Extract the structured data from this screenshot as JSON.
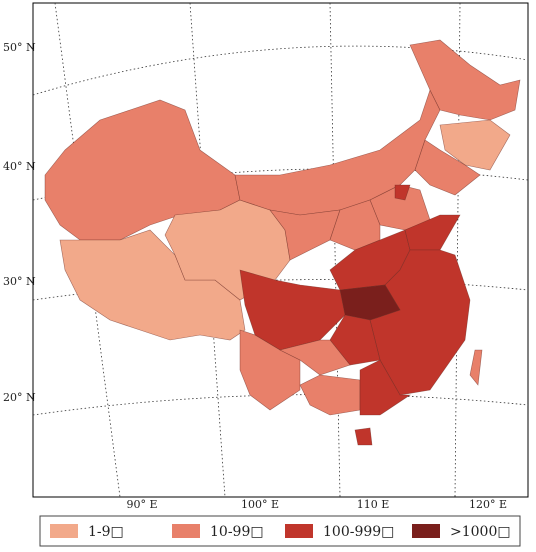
{
  "latitude_labels": [
    "50° N",
    "40° N",
    "30° N",
    "20° N"
  ],
  "longitude_labels": [
    "90° E",
    "100° E",
    "110 E",
    "120° E"
  ],
  "legend": [
    {
      "label": "1-9□",
      "color": "#f2a98a"
    },
    {
      "label": "10-99□",
      "color": "#e8806a"
    },
    {
      "label": "100-999□",
      "color": "#c0352b"
    },
    {
      "label": ">1000□",
      "color": "#7a1f1c"
    }
  ]
}
